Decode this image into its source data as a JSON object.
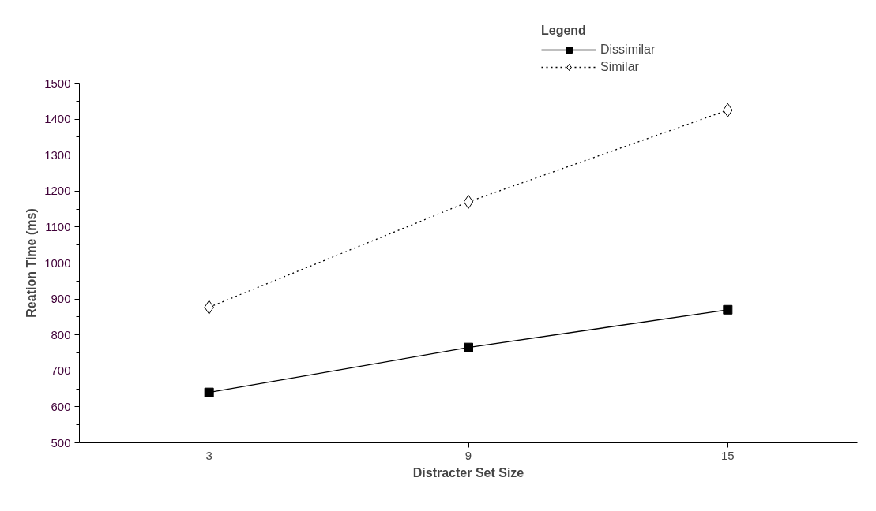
{
  "chart_data": {
    "type": "line",
    "xlabel": "Distracter Set Size",
    "ylabel": "Reation Time (ms)",
    "legend_title": "Legend",
    "x": [
      3,
      9,
      15
    ],
    "xlim": [
      0,
      18
    ],
    "xticks": [
      3,
      9,
      15
    ],
    "ylim": [
      500,
      1500
    ],
    "yticks": [
      500,
      600,
      700,
      800,
      900,
      1000,
      1100,
      1200,
      1300,
      1400,
      1500
    ],
    "grid": false,
    "legend": "top right",
    "series": [
      {
        "name": "Dissimilar",
        "color": "#000000",
        "values": [
          640,
          765,
          870
        ],
        "marker": "square",
        "line_style": "solid"
      },
      {
        "name": "Similar",
        "color": "#000000",
        "values": [
          877,
          1170,
          1425
        ],
        "marker": "diamond",
        "line_style": "dotted"
      }
    ]
  }
}
